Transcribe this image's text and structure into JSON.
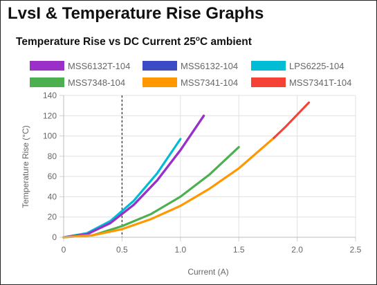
{
  "page": {
    "title": "LvsI & Temperature Rise Graphs"
  },
  "chart_data": {
    "type": "line",
    "title": "Temperature Rise vs DC Current 25",
    "title_superscript": "o",
    "title_suffix": "C ambient",
    "xlabel": "Current (A)",
    "ylabel": "Temperature Rise (°C)",
    "xlim": [
      0,
      2.5
    ],
    "ylim": [
      0,
      140
    ],
    "x_ticks": [
      "0",
      "0.5",
      "1.0",
      "1.5",
      "2.0",
      "2.5"
    ],
    "y_ticks": [
      "0",
      "20",
      "40",
      "60",
      "80",
      "100",
      "120",
      "140"
    ],
    "grid": true,
    "legend_position": "top",
    "reference_line": {
      "x": 0.5,
      "style": "dashed"
    },
    "series": [
      {
        "name": "MSS6132T-104",
        "color": "#9b30c8",
        "x": [
          0,
          0.2,
          0.4,
          0.6,
          0.8,
          1.0,
          1.2
        ],
        "y": [
          0,
          3,
          14,
          32,
          56,
          86,
          120
        ]
      },
      {
        "name": "MSS6132-104",
        "color": "#3b4bc4",
        "x": [
          0,
          0.2,
          0.4,
          0.6,
          0.8,
          1.0,
          1.2
        ],
        "y": [
          0,
          3,
          14,
          32,
          56,
          86,
          120
        ]
      },
      {
        "name": "LPS6225-104",
        "color": "#00bcd4",
        "x": [
          0,
          0.2,
          0.4,
          0.6,
          0.8,
          1.0
        ],
        "y": [
          0,
          4,
          16,
          36,
          63,
          97
        ]
      },
      {
        "name": "MSS7348-104",
        "color": "#4caf50",
        "x": [
          0,
          0.25,
          0.5,
          0.75,
          1.0,
          1.25,
          1.5
        ],
        "y": [
          0,
          2,
          11,
          23,
          40,
          62,
          89
        ]
      },
      {
        "name": "MSS7341-104",
        "color": "#ff9800",
        "x": [
          0,
          0.25,
          0.5,
          0.75,
          1.0,
          1.25,
          1.5,
          1.8
        ],
        "y": [
          0,
          2,
          8,
          18,
          31,
          48,
          68,
          98
        ]
      },
      {
        "name": "MSS7341T-104",
        "color": "#f44336",
        "x": [
          1.8,
          1.9,
          2.0,
          2.1
        ],
        "y": [
          98,
          109,
          121,
          133
        ]
      }
    ]
  }
}
